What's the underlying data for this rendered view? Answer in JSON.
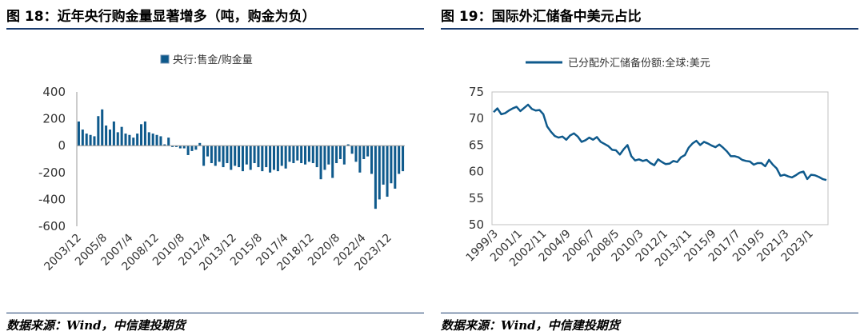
{
  "left": {
    "title": "图 18：近年央行购金量显著增多（吨，购金为负）",
    "source": "数据来源：Wind，中信建投期货",
    "chart_data": {
      "type": "bar",
      "series_name": "央行:售金/购金量",
      "color": "#0f5a8c",
      "ylim": [
        -600,
        400
      ],
      "yticks": [
        400,
        200,
        0,
        -200,
        -400,
        -600
      ],
      "xtick_labels": [
        "2003/12",
        "2005/8",
        "2007/4",
        "2008/12",
        "2010/8",
        "2012/4",
        "2013/12",
        "2015/8",
        "2017/4",
        "2018/12",
        "2020/8",
        "2022/4",
        "2023/12"
      ],
      "values": [
        180,
        120,
        90,
        80,
        70,
        220,
        270,
        150,
        120,
        180,
        100,
        140,
        90,
        80,
        60,
        90,
        160,
        180,
        100,
        90,
        80,
        70,
        10,
        60,
        -10,
        -10,
        -20,
        -20,
        -70,
        -40,
        -30,
        20,
        -150,
        -80,
        -130,
        -150,
        -120,
        -160,
        -130,
        -180,
        -150,
        -160,
        -190,
        -140,
        -180,
        -130,
        -160,
        -190,
        -160,
        -200,
        -180,
        -190,
        -150,
        -170,
        -120,
        -130,
        -110,
        -130,
        -140,
        -120,
        -130,
        -160,
        -250,
        -180,
        -140,
        -240,
        -130,
        -100,
        -140,
        10,
        -60,
        -120,
        -200,
        -100,
        -80,
        -210,
        -470,
        -400,
        -290,
        -380,
        -280,
        -320,
        -210,
        -190
      ]
    }
  },
  "right": {
    "title": "图 19：国际外汇储备中美元占比",
    "source": "数据来源：Wind，中信建投期货",
    "chart_data": {
      "type": "line",
      "series_name": "已分配外汇储备份额:全球:美元",
      "color": "#0f5a8c",
      "ylim": [
        50,
        75
      ],
      "yticks": [
        75,
        70,
        65,
        60,
        55,
        50
      ],
      "xtick_labels": [
        "1999/3",
        "2001/1",
        "2002/11",
        "2004/9",
        "2006/7",
        "2008/5",
        "2010/3",
        "2012/1",
        "2013/11",
        "2015/9",
        "2017/7",
        "2019/5",
        "2021/3",
        "2023/1"
      ],
      "values": [
        71.2,
        71.9,
        70.8,
        71.0,
        71.5,
        71.9,
        72.2,
        71.4,
        72.0,
        72.6,
        71.8,
        71.5,
        71.6,
        70.8,
        68.5,
        67.5,
        66.7,
        66.4,
        66.6,
        66.0,
        66.8,
        67.2,
        66.6,
        65.6,
        65.9,
        66.4,
        66.0,
        66.5,
        65.6,
        65.2,
        64.8,
        64.1,
        64.0,
        63.2,
        64.2,
        65.0,
        62.9,
        62.1,
        62.3,
        62.0,
        62.2,
        61.6,
        61.2,
        62.3,
        61.8,
        61.4,
        61.5,
        62.0,
        61.8,
        62.7,
        63.1,
        64.5,
        65.3,
        65.8,
        65.0,
        65.6,
        65.3,
        64.9,
        64.6,
        65.1,
        64.5,
        63.8,
        62.9,
        62.9,
        62.7,
        62.2,
        62.0,
        61.9,
        61.3,
        61.6,
        61.6,
        61.0,
        62.2,
        61.3,
        60.6,
        59.2,
        59.4,
        59.1,
        58.9,
        59.3,
        59.8,
        60.0,
        58.6,
        59.4,
        59.3,
        59.0,
        58.6,
        58.4
      ]
    }
  }
}
